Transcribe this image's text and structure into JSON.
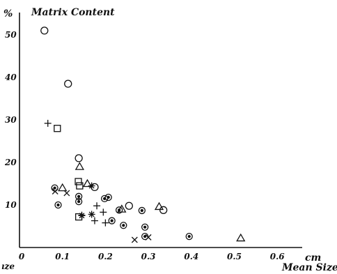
{
  "chart_data": {
    "type": "scatter",
    "title": "Matrix Content",
    "y_unit": "%",
    "x_unit": "cm",
    "xlabel": "Mean Size",
    "left_edge_fragment": "ıze",
    "xlim": [
      0,
      0.7
    ],
    "ylim": [
      0,
      53
    ],
    "x_ticks": [
      "0",
      "0.1",
      "0.2",
      "0.3",
      "0.4",
      "0.5",
      "0.6"
    ],
    "x_tick_values": [
      0,
      0.1,
      0.2,
      0.3,
      0.4,
      0.5,
      0.6
    ],
    "y_ticks": [
      "10",
      "20",
      "30",
      "40",
      "50"
    ],
    "y_tick_values": [
      10,
      20,
      30,
      40,
      50
    ],
    "grid": false,
    "legend": "none",
    "series": [
      {
        "marker": "circle",
        "points": [
          [
            0.058,
            51.0
          ],
          [
            0.113,
            38.5
          ],
          [
            0.138,
            21.0
          ],
          [
            0.175,
            14.2
          ],
          [
            0.255,
            9.8
          ],
          [
            0.335,
            8.8
          ]
        ]
      },
      {
        "marker": "circle-dot",
        "points": [
          [
            0.082,
            14.0
          ],
          [
            0.09,
            10.0
          ],
          [
            0.138,
            12.0
          ],
          [
            0.138,
            10.8
          ],
          [
            0.198,
            11.5
          ],
          [
            0.207,
            11.8
          ],
          [
            0.215,
            6.3
          ],
          [
            0.232,
            8.8
          ],
          [
            0.242,
            5.2
          ],
          [
            0.285,
            8.7
          ],
          [
            0.292,
            4.8
          ],
          [
            0.292,
            2.6
          ],
          [
            0.395,
            2.6
          ]
        ]
      },
      {
        "marker": "triangle",
        "points": [
          [
            0.1,
            14.0
          ],
          [
            0.14,
            19.0
          ],
          [
            0.158,
            15.0
          ],
          [
            0.238,
            9.0
          ],
          [
            0.325,
            9.6
          ],
          [
            0.515,
            2.2
          ]
        ]
      },
      {
        "marker": "square",
        "points": [
          [
            0.088,
            28.0
          ],
          [
            0.137,
            15.5
          ],
          [
            0.14,
            14.5
          ],
          [
            0.138,
            7.2
          ]
        ]
      },
      {
        "marker": "plus",
        "points": [
          [
            0.066,
            29.2
          ],
          [
            0.145,
            7.6
          ],
          [
            0.175,
            6.3
          ],
          [
            0.18,
            9.8
          ],
          [
            0.195,
            8.3
          ],
          [
            0.2,
            5.8
          ]
        ]
      },
      {
        "marker": "cross",
        "points": [
          [
            0.083,
            13.2
          ],
          [
            0.11,
            12.8
          ],
          [
            0.268,
            1.8
          ],
          [
            0.3,
            2.4
          ]
        ]
      },
      {
        "marker": "star",
        "points": [
          [
            0.145,
            7.5
          ],
          [
            0.168,
            14.5
          ],
          [
            0.168,
            7.8
          ]
        ]
      }
    ]
  }
}
